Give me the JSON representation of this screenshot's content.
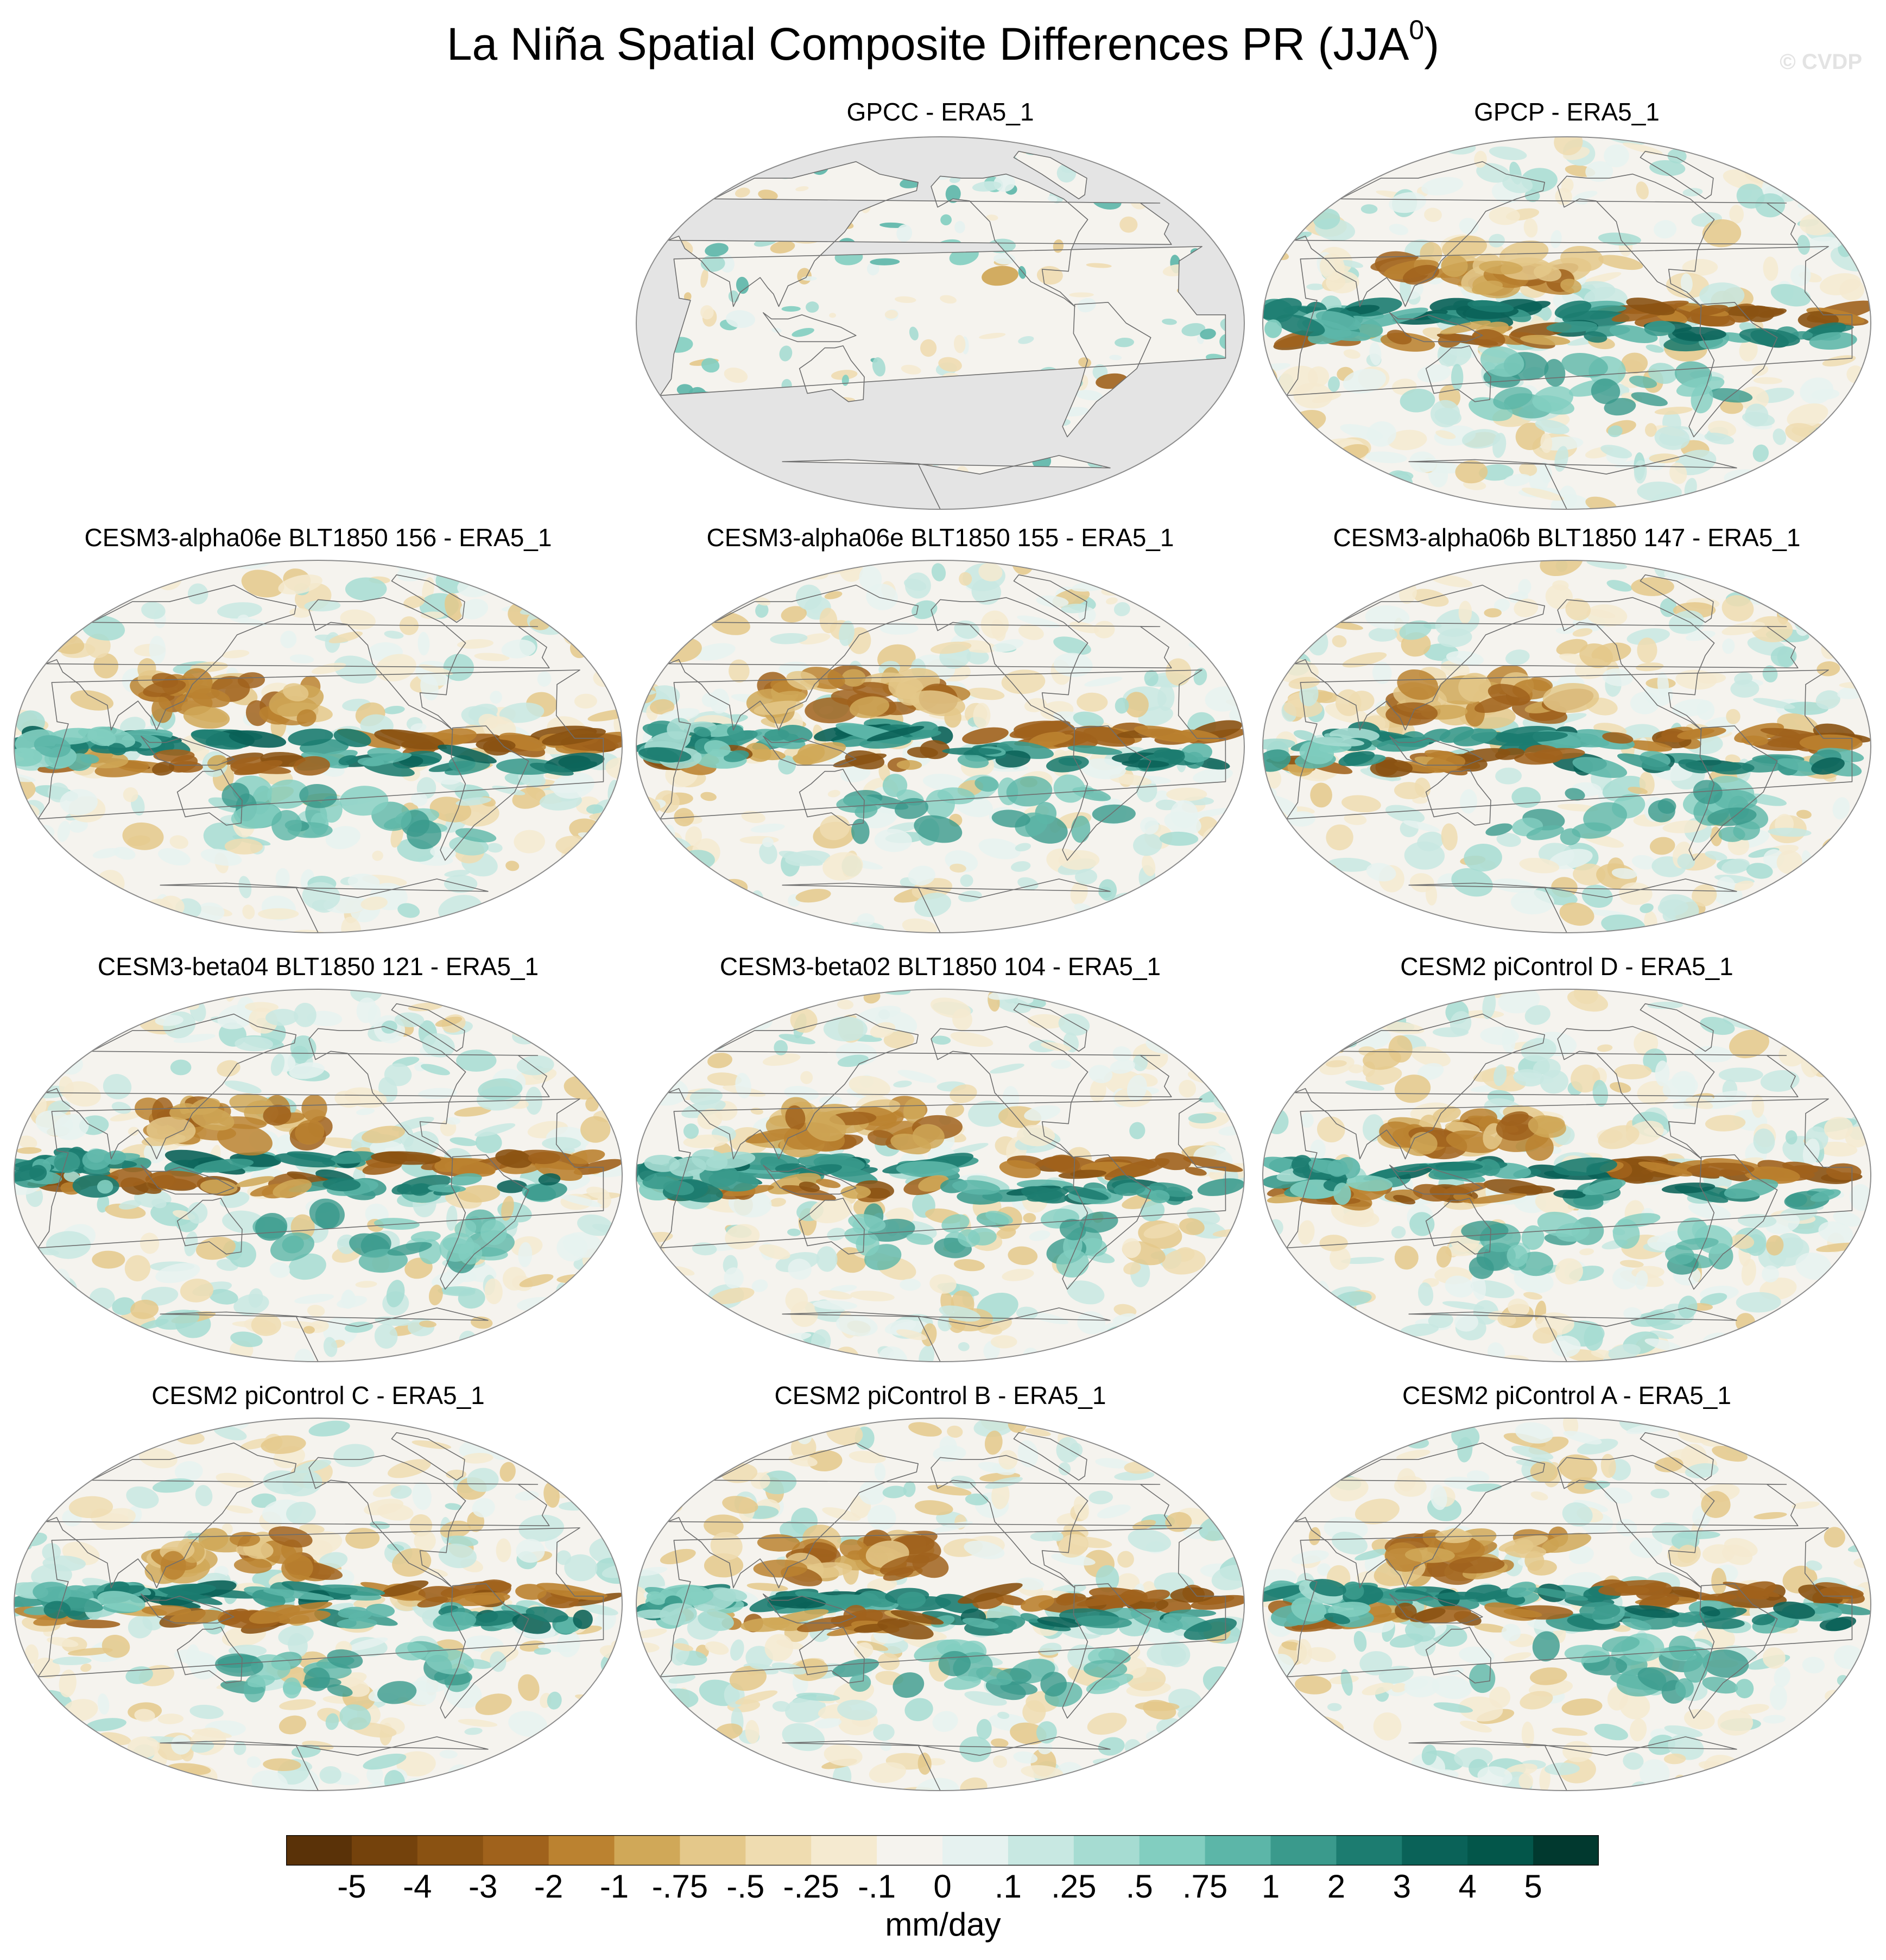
{
  "figure": {
    "title": "La Niña Spatial Composite Differences PR (JJA",
    "title_superscript": "0",
    "title_suffix": ")",
    "watermark": "© CVDP",
    "units": "mm/day"
  },
  "colors": {
    "palette": [
      "#5a3208",
      "#74420c",
      "#8a5212",
      "#a0621c",
      "#bb8230",
      "#d0a858",
      "#e4c88a",
      "#efdcb0",
      "#f5ead0",
      "#f5f3ee",
      "#e6f2f0",
      "#c8e8e2",
      "#a6dcd2",
      "#82cec0",
      "#5cb6a8",
      "#3a9a8c",
      "#1c7c70",
      "#0a6258",
      "#03564a",
      "#01392f"
    ],
    "land_mask": "#e4e4e4",
    "coast": "#6e6e6e",
    "border": "#8c8c8c"
  },
  "colorbar": {
    "labels": [
      "-5",
      "-4",
      "-3",
      "-2",
      "-1",
      "-.75",
      "-.5",
      "-.25",
      "-.1",
      "0",
      ".1",
      ".25",
      ".5",
      ".75",
      "1",
      "2",
      "3",
      "4",
      "5"
    ]
  },
  "panels": [
    {
      "title": "GPCC - ERA5_1",
      "land_only": true
    },
    {
      "title": "GPCP - ERA5_1",
      "land_only": false
    },
    {
      "title": "CESM3-alpha06e BLT1850 156 - ERA5_1",
      "land_only": false
    },
    {
      "title": "CESM3-alpha06e BLT1850 155 - ERA5_1",
      "land_only": false
    },
    {
      "title": "CESM3-alpha06b BLT1850 147 - ERA5_1",
      "land_only": false
    },
    {
      "title": "CESM3-beta04 BLT1850 121 - ERA5_1",
      "land_only": false
    },
    {
      "title": "CESM3-beta02 BLT1850 104 - ERA5_1",
      "land_only": false
    },
    {
      "title": "CESM2 piControl D - ERA5_1",
      "land_only": false
    },
    {
      "title": "CESM2 piControl C - ERA5_1",
      "land_only": false
    },
    {
      "title": "CESM2 piControl B - ERA5_1",
      "land_only": false
    },
    {
      "title": "CESM2 piControl A - ERA5_1",
      "land_only": false
    }
  ]
}
